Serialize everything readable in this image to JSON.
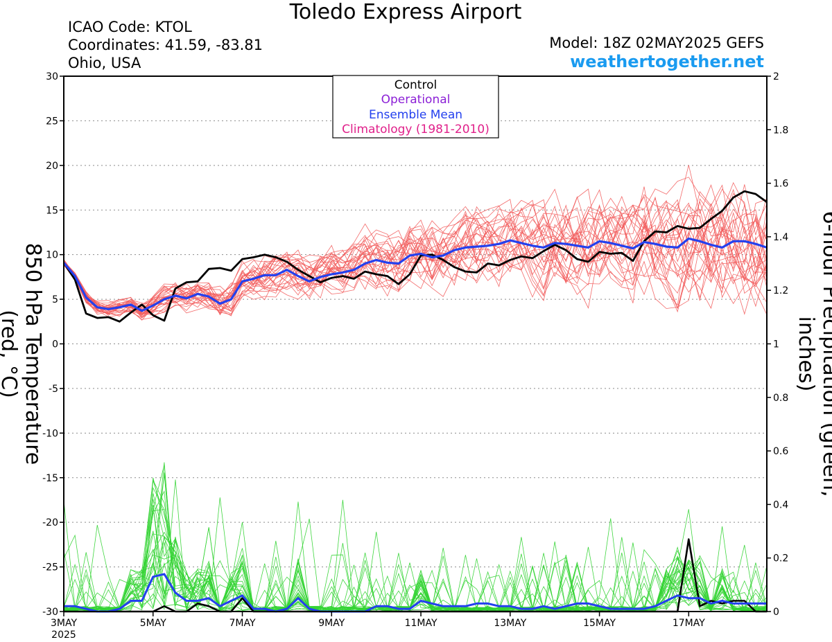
{
  "header": {
    "title": "Toledo Express Airport",
    "icao": "ICAO Code: KTOL",
    "coordinates": "Coordinates: 41.59, -83.81",
    "location": "Ohio, USA",
    "model": "Model: 18Z 02MAY2025 GEFS",
    "site": "weathertogether.net"
  },
  "colors": {
    "members": "#f25a5a",
    "precip_members": "#35d435",
    "control": "#000000",
    "operational": "#8b1fd6",
    "ensemble_mean": "#2340ee",
    "climatology": "#e0208a",
    "site": "#1a9bf0"
  },
  "chart_data": {
    "type": "line",
    "title": "Toledo Express Airport",
    "ylabel_left": "850 hPa Temperature (red, °C)",
    "ylabel_right": "6-hour Precipitation (green, inches)",
    "ylim_left": [
      -30,
      30
    ],
    "ylim_right": [
      0,
      2
    ],
    "yticks_left": [
      "30",
      "25",
      "20",
      "15",
      "10",
      "5",
      "0",
      "-5",
      "-10",
      "-15",
      "-20",
      "-25",
      "-30"
    ],
    "yticks_right": [
      "2",
      "1.8",
      "1.6",
      "1.4",
      "1.2",
      "1",
      "0.8",
      "0.6",
      "0.4",
      "0.2",
      "0"
    ],
    "x_step_hours": 6,
    "xticks": [
      {
        "label": "3MAY",
        "sub": "2025",
        "index": 0
      },
      {
        "label": "5MAY",
        "index": 8
      },
      {
        "label": "7MAY",
        "index": 16
      },
      {
        "label": "9MAY",
        "index": 24
      },
      {
        "label": "11MAY",
        "index": 32
      },
      {
        "label": "13MAY",
        "index": 40
      },
      {
        "label": "15MAY",
        "index": 48
      },
      {
        "label": "17MAY",
        "index": 56
      }
    ],
    "grid": "dotted horizontal",
    "legend": {
      "placement": "top-center",
      "entries": [
        "Control",
        "Operational",
        "Ensemble Mean",
        "Climatology (1981-2010)"
      ]
    },
    "series": [
      {
        "name": "Control",
        "axis": "left",
        "values": [
          9.1,
          7.2,
          3.4,
          2.9,
          3.0,
          2.5,
          3.5,
          4.4,
          3.2,
          2.6,
          6.2,
          6.9,
          7.0,
          8.4,
          8.5,
          8.2,
          9.5,
          9.7,
          10.0,
          9.7,
          9.2,
          8.3,
          7.6,
          6.9,
          7.4,
          7.6,
          7.3,
          8.1,
          7.8,
          7.6,
          6.7,
          7.8,
          9.9,
          10.0,
          9.4,
          8.6,
          8.1,
          8.0,
          9.0,
          8.8,
          9.4,
          9.8,
          9.6,
          10.4,
          11.1,
          10.5,
          9.5,
          9.2,
          10.3,
          10.1,
          10.2,
          9.3,
          11.5,
          12.6,
          12.5,
          13.2,
          12.9,
          13.0,
          14.0,
          14.9,
          16.4,
          17.1,
          16.8,
          15.9
        ]
      },
      {
        "name": "Ensemble Mean",
        "axis": "left",
        "values": [
          9.1,
          7.6,
          5.2,
          4.1,
          3.9,
          4.1,
          4.4,
          3.7,
          4.3,
          5.0,
          5.4,
          5.1,
          5.6,
          5.3,
          4.5,
          5.0,
          7.0,
          7.3,
          7.7,
          7.7,
          8.3,
          7.6,
          7.0,
          7.5,
          7.8,
          8.0,
          8.3,
          9.0,
          9.4,
          9.1,
          9.0,
          9.9,
          10.1,
          9.7,
          9.9,
          10.5,
          10.8,
          10.9,
          11.0,
          11.2,
          11.6,
          11.3,
          11.0,
          10.8,
          11.3,
          11.2,
          11.0,
          10.8,
          11.5,
          11.3,
          11.0,
          10.7,
          11.4,
          11.2,
          10.9,
          10.8,
          11.8,
          11.5,
          11.1,
          10.8,
          11.5,
          11.5,
          11.2,
          10.8
        ]
      },
      {
        "name": "Control precipitation",
        "axis": "right",
        "values": [
          0,
          0,
          0,
          0,
          0,
          0,
          0,
          0,
          0,
          0.02,
          0,
          0,
          0.03,
          0.02,
          0,
          0,
          0.05,
          0,
          0,
          0,
          0,
          0,
          0,
          0,
          0,
          0,
          0,
          0,
          0,
          0,
          0,
          0,
          0,
          0,
          0,
          0,
          0,
          0,
          0,
          0,
          0,
          0,
          0,
          0,
          0,
          0,
          0,
          0,
          0,
          0,
          0,
          0,
          0,
          0,
          0,
          0,
          0.27,
          0.02,
          0.04,
          0.03,
          0.04,
          0.04,
          0,
          0
        ]
      },
      {
        "name": "Ensemble Mean precipitation",
        "axis": "right",
        "values": [
          0.02,
          0.02,
          0.01,
          0,
          0,
          0.01,
          0.04,
          0.04,
          0.13,
          0.14,
          0.07,
          0.04,
          0.04,
          0.05,
          0.02,
          0.04,
          0.06,
          0.01,
          0.01,
          0,
          0.01,
          0.05,
          0.01,
          0,
          0,
          0,
          0,
          0,
          0.02,
          0.02,
          0.01,
          0.01,
          0.04,
          0.03,
          0.02,
          0.02,
          0.02,
          0.03,
          0.03,
          0.02,
          0.02,
          0.01,
          0.01,
          0.02,
          0.01,
          0.02,
          0.03,
          0.03,
          0.02,
          0.01,
          0.01,
          0.01,
          0.01,
          0.02,
          0.04,
          0.06,
          0.05,
          0.05,
          0.03,
          0.04,
          0.03,
          0.03,
          0.03,
          0.03
        ]
      }
    ]
  }
}
